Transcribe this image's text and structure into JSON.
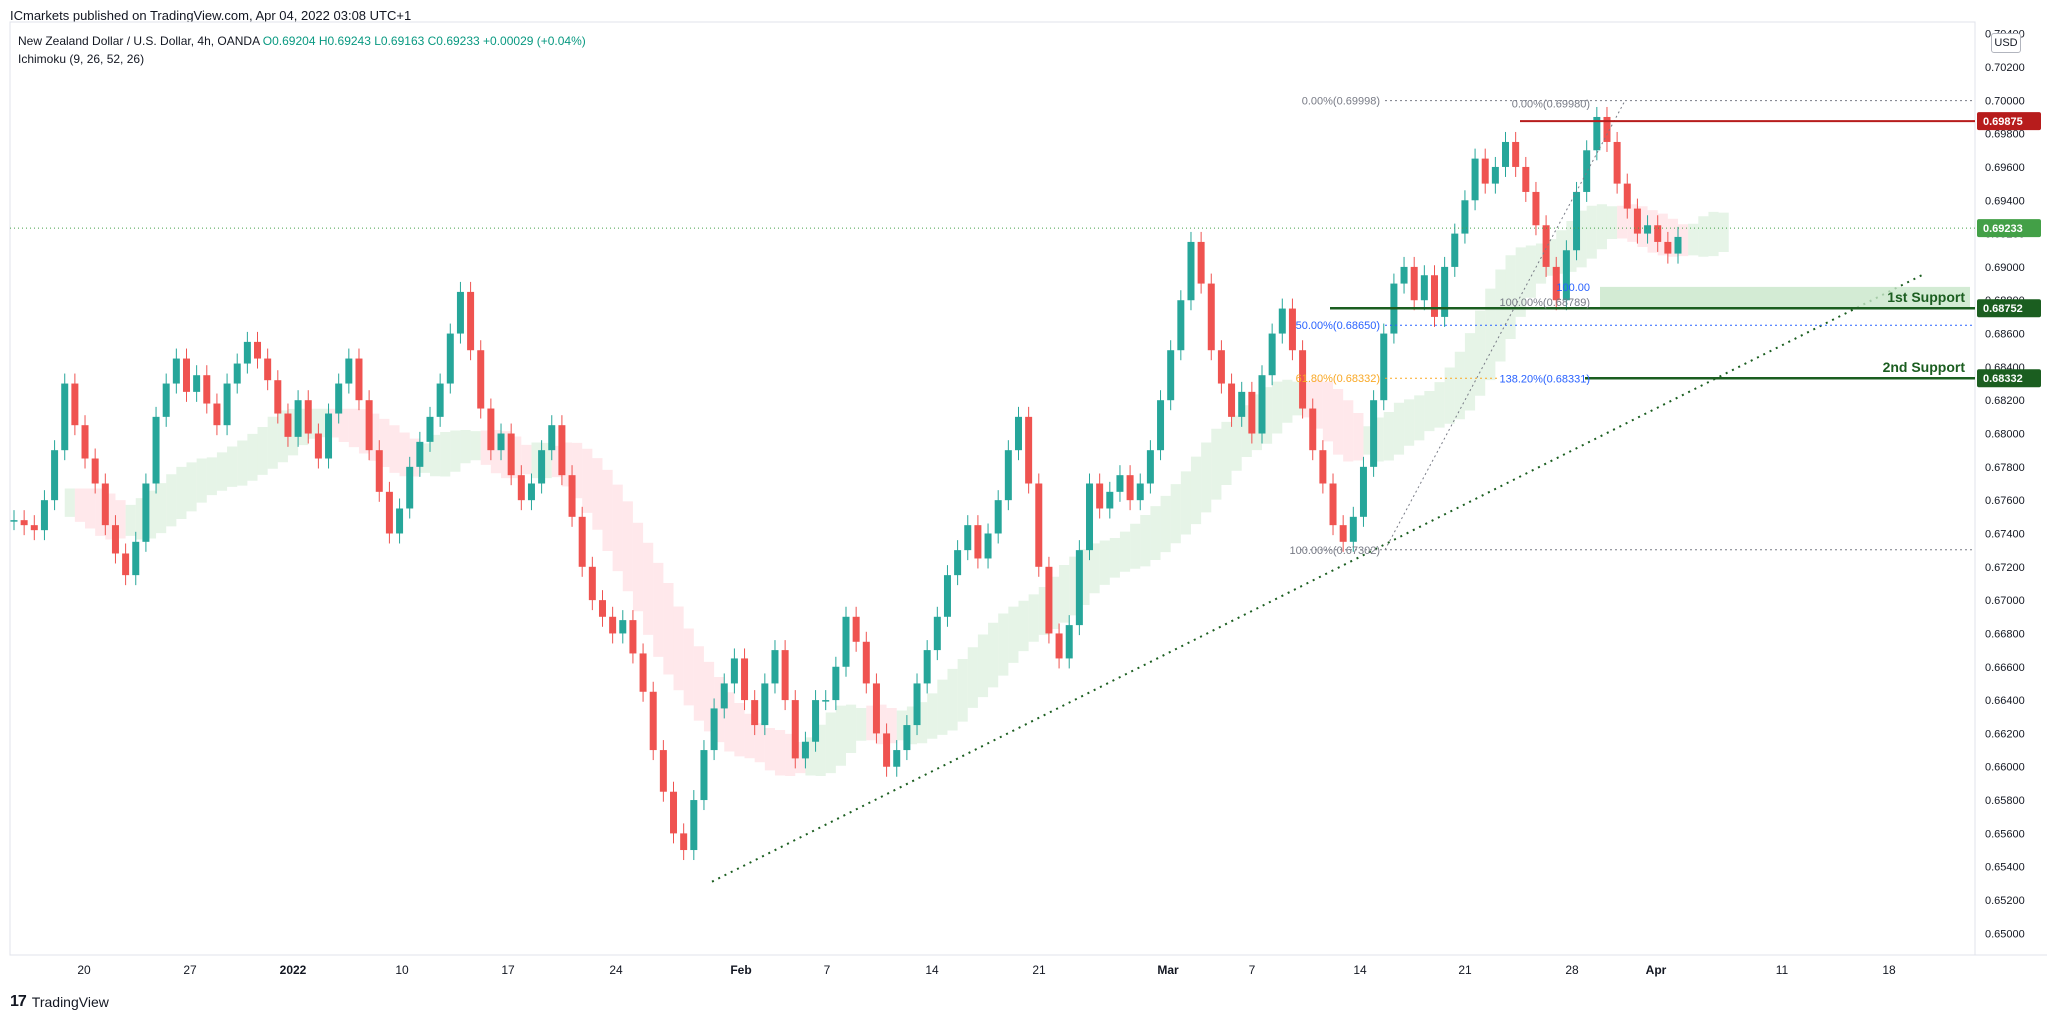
{
  "header": {
    "publisher": "ICmarkets published on TradingView.com, Apr 04, 2022 03:08 UTC+1"
  },
  "symbol": {
    "title": "New Zealand Dollar / U.S. Dollar, 4h, OANDA",
    "open": "O0.69204",
    "high": "H0.69243",
    "low": "L0.69163",
    "close": "C0.69233",
    "change": "+0.00029 (+0.04%)",
    "indicator": "Ichimoku (9, 26, 52, 26)"
  },
  "currency": "USD",
  "footer": {
    "logo_text": "TradingView",
    "logo_mark": "17"
  },
  "colors": {
    "up": "#26a69a",
    "down": "#ef5350",
    "resistance": "#b71c1c",
    "support": "#1b5e20",
    "cloud_green": "#c8e6c9",
    "cloud_red": "#ffcdd2",
    "trendline": "#1b5e20",
    "price_label": "#43a047",
    "fib_blue": "#2962ff",
    "fib_orange": "#f9a825",
    "fib_gray": "#787b86"
  },
  "chart_data": {
    "type": "candlestick",
    "symbol": "NZDUSD",
    "timeframe": "4h",
    "y_axis": {
      "ticks": [
        "0.70400",
        "0.70200",
        "0.70000",
        "0.69800",
        "0.69600",
        "0.69400",
        "0.69200",
        "0.69000",
        "0.68800",
        "0.68600",
        "0.68400",
        "0.68200",
        "0.68000",
        "0.67800",
        "0.67600",
        "0.67400",
        "0.67200",
        "0.67000",
        "0.66800",
        "0.66600",
        "0.66400",
        "0.66200",
        "0.66000",
        "0.65800",
        "0.65600",
        "0.65400",
        "0.65200",
        "0.65000"
      ],
      "ylim": [
        0.6487,
        0.7047
      ]
    },
    "x_axis": {
      "ticks": [
        "20",
        "27",
        "2022",
        "10",
        "17",
        "24",
        "Feb",
        "7",
        "14",
        "21",
        "Mar",
        "7",
        "14",
        "21",
        "28",
        "Apr",
        "11",
        "18"
      ],
      "bold_ticks": [
        "2022",
        "Feb",
        "Mar",
        "Apr"
      ]
    },
    "price_labels": [
      {
        "value": 0.69875,
        "text": "0.69875",
        "kind": "resistance"
      },
      {
        "value": 0.69233,
        "text": "0.69233",
        "kind": "last"
      },
      {
        "value": 0.68752,
        "text": "0.68752",
        "kind": "support"
      },
      {
        "value": 0.68332,
        "text": "0.68332",
        "kind": "support"
      }
    ],
    "annotations": {
      "support1": "1st Support",
      "support2": "2nd Support"
    },
    "fib_labels": {
      "a_top": "0.00%(0.69998)",
      "a_mid": "50.00%(0.68650)",
      "a_618": "61.80%(0.68332)",
      "a_bottom": "100.00%(0.67302)",
      "b_top": "0.00%(0.69980)",
      "b_bottom": "100.00%(0.68789)",
      "b_ext": "138.20%(0.68331)",
      "b_blue": "100.00"
    },
    "close_path": [
      [
        0.6748,
        0.6745,
        0.6742,
        0.676,
        0.679,
        0.683,
        0.6805,
        0.6785,
        0.677,
        0.6745,
        0.6728,
        0.6715,
        0.6735,
        0.677,
        0.681,
        0.683,
        0.6845,
        0.6825,
        0.6835,
        0.6818,
        0.6805,
        0.683,
        0.6842,
        0.6855,
        0.6845,
        0.6832,
        0.6812,
        0.6798,
        0.682,
        0.68,
        0.6785,
        0.6812,
        0.683,
        0.6845,
        0.682,
        0.679,
        0.6765,
        0.674,
        0.6755,
        0.678,
        0.6795,
        0.681,
        0.683,
        0.686,
        0.6885,
        0.685,
        0.6815,
        0.679,
        0.68,
        0.6775,
        0.676,
        0.677,
        0.679,
        0.6805,
        0.6775,
        0.675,
        0.672,
        0.67,
        0.669,
        0.668,
        0.6688,
        0.6668,
        0.6645,
        0.661,
        0.6585,
        0.656,
        0.655,
        0.658,
        0.661,
        0.6635,
        0.665,
        0.6665,
        0.664,
        0.6625,
        0.665,
        0.667,
        0.664,
        0.6605,
        0.6615,
        0.664,
        0.664,
        0.666,
        0.669,
        0.6675,
        0.665,
        0.662,
        0.66,
        0.661,
        0.6625,
        0.665,
        0.667,
        0.669,
        0.6715,
        0.673,
        0.6745,
        0.6725,
        0.674,
        0.676,
        0.679,
        0.681,
        0.677,
        0.672,
        0.668,
        0.6665,
        0.6685,
        0.673,
        0.677,
        0.6755,
        0.6765,
        0.6775,
        0.676,
        0.677,
        0.679,
        0.682,
        0.685,
        0.688,
        0.6915,
        0.689,
        0.685,
        0.683,
        0.681,
        0.6825,
        0.68,
        0.6835,
        0.686,
        0.6875,
        0.685,
        0.6815,
        0.679,
        0.677,
        0.6745,
        0.6735,
        0.675,
        0.678,
        0.682,
        0.686,
        0.689,
        0.69,
        0.688,
        0.6895,
        0.687,
        0.69,
        0.692,
        0.694,
        0.6965,
        0.695,
        0.696,
        0.6975,
        0.696,
        0.6945,
        0.6925,
        0.69,
        0.688,
        0.691,
        0.6945,
        0.697,
        0.699,
        0.6975,
        0.695,
        0.6935,
        0.692,
        0.6925,
        0.6915,
        0.6908,
        0.6918
      ]
    ]
  }
}
